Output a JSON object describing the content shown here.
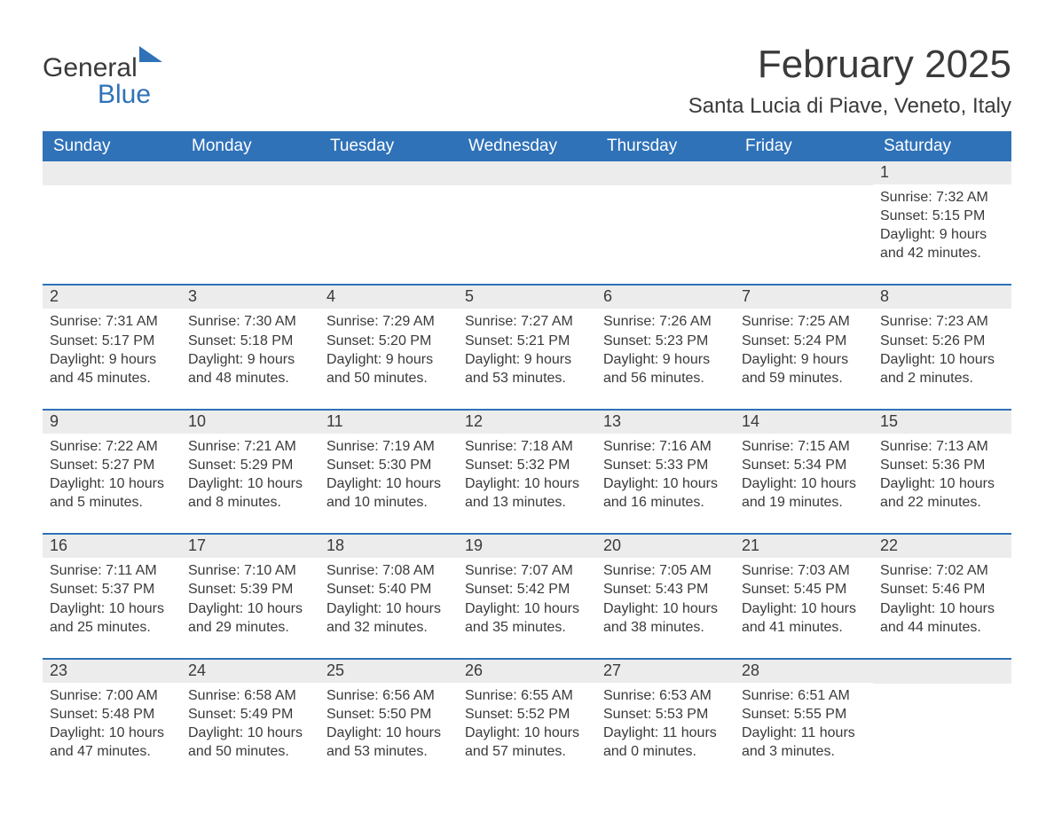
{
  "logo": {
    "text1": "General",
    "text2": "Blue"
  },
  "title": "February 2025",
  "location": "Santa Lucia di Piave, Veneto, Italy",
  "colors": {
    "header_bg": "#2f72b8",
    "header_text": "#ffffff",
    "daynum_bg": "#ececec",
    "text": "#3a3a3a",
    "week_border": "#2f72b8",
    "background": "#ffffff"
  },
  "typography": {
    "title_fontsize": 44,
    "location_fontsize": 24,
    "dow_fontsize": 19,
    "daynum_fontsize": 18,
    "body_fontsize": 16,
    "logo_fontsize": 30
  },
  "days_of_week": [
    "Sunday",
    "Monday",
    "Tuesday",
    "Wednesday",
    "Thursday",
    "Friday",
    "Saturday"
  ],
  "weeks": [
    [
      {
        "n": "",
        "lines": []
      },
      {
        "n": "",
        "lines": []
      },
      {
        "n": "",
        "lines": []
      },
      {
        "n": "",
        "lines": []
      },
      {
        "n": "",
        "lines": []
      },
      {
        "n": "",
        "lines": []
      },
      {
        "n": "1",
        "lines": [
          "Sunrise: 7:32 AM",
          "Sunset: 5:15 PM",
          "Daylight: 9 hours and 42 minutes."
        ]
      }
    ],
    [
      {
        "n": "2",
        "lines": [
          "Sunrise: 7:31 AM",
          "Sunset: 5:17 PM",
          "Daylight: 9 hours and 45 minutes."
        ]
      },
      {
        "n": "3",
        "lines": [
          "Sunrise: 7:30 AM",
          "Sunset: 5:18 PM",
          "Daylight: 9 hours and 48 minutes."
        ]
      },
      {
        "n": "4",
        "lines": [
          "Sunrise: 7:29 AM",
          "Sunset: 5:20 PM",
          "Daylight: 9 hours and 50 minutes."
        ]
      },
      {
        "n": "5",
        "lines": [
          "Sunrise: 7:27 AM",
          "Sunset: 5:21 PM",
          "Daylight: 9 hours and 53 minutes."
        ]
      },
      {
        "n": "6",
        "lines": [
          "Sunrise: 7:26 AM",
          "Sunset: 5:23 PM",
          "Daylight: 9 hours and 56 minutes."
        ]
      },
      {
        "n": "7",
        "lines": [
          "Sunrise: 7:25 AM",
          "Sunset: 5:24 PM",
          "Daylight: 9 hours and 59 minutes."
        ]
      },
      {
        "n": "8",
        "lines": [
          "Sunrise: 7:23 AM",
          "Sunset: 5:26 PM",
          "Daylight: 10 hours and 2 minutes."
        ]
      }
    ],
    [
      {
        "n": "9",
        "lines": [
          "Sunrise: 7:22 AM",
          "Sunset: 5:27 PM",
          "Daylight: 10 hours and 5 minutes."
        ]
      },
      {
        "n": "10",
        "lines": [
          "Sunrise: 7:21 AM",
          "Sunset: 5:29 PM",
          "Daylight: 10 hours and 8 minutes."
        ]
      },
      {
        "n": "11",
        "lines": [
          "Sunrise: 7:19 AM",
          "Sunset: 5:30 PM",
          "Daylight: 10 hours and 10 minutes."
        ]
      },
      {
        "n": "12",
        "lines": [
          "Sunrise: 7:18 AM",
          "Sunset: 5:32 PM",
          "Daylight: 10 hours and 13 minutes."
        ]
      },
      {
        "n": "13",
        "lines": [
          "Sunrise: 7:16 AM",
          "Sunset: 5:33 PM",
          "Daylight: 10 hours and 16 minutes."
        ]
      },
      {
        "n": "14",
        "lines": [
          "Sunrise: 7:15 AM",
          "Sunset: 5:34 PM",
          "Daylight: 10 hours and 19 minutes."
        ]
      },
      {
        "n": "15",
        "lines": [
          "Sunrise: 7:13 AM",
          "Sunset: 5:36 PM",
          "Daylight: 10 hours and 22 minutes."
        ]
      }
    ],
    [
      {
        "n": "16",
        "lines": [
          "Sunrise: 7:11 AM",
          "Sunset: 5:37 PM",
          "Daylight: 10 hours and 25 minutes."
        ]
      },
      {
        "n": "17",
        "lines": [
          "Sunrise: 7:10 AM",
          "Sunset: 5:39 PM",
          "Daylight: 10 hours and 29 minutes."
        ]
      },
      {
        "n": "18",
        "lines": [
          "Sunrise: 7:08 AM",
          "Sunset: 5:40 PM",
          "Daylight: 10 hours and 32 minutes."
        ]
      },
      {
        "n": "19",
        "lines": [
          "Sunrise: 7:07 AM",
          "Sunset: 5:42 PM",
          "Daylight: 10 hours and 35 minutes."
        ]
      },
      {
        "n": "20",
        "lines": [
          "Sunrise: 7:05 AM",
          "Sunset: 5:43 PM",
          "Daylight: 10 hours and 38 minutes."
        ]
      },
      {
        "n": "21",
        "lines": [
          "Sunrise: 7:03 AM",
          "Sunset: 5:45 PM",
          "Daylight: 10 hours and 41 minutes."
        ]
      },
      {
        "n": "22",
        "lines": [
          "Sunrise: 7:02 AM",
          "Sunset: 5:46 PM",
          "Daylight: 10 hours and 44 minutes."
        ]
      }
    ],
    [
      {
        "n": "23",
        "lines": [
          "Sunrise: 7:00 AM",
          "Sunset: 5:48 PM",
          "Daylight: 10 hours and 47 minutes."
        ]
      },
      {
        "n": "24",
        "lines": [
          "Sunrise: 6:58 AM",
          "Sunset: 5:49 PM",
          "Daylight: 10 hours and 50 minutes."
        ]
      },
      {
        "n": "25",
        "lines": [
          "Sunrise: 6:56 AM",
          "Sunset: 5:50 PM",
          "Daylight: 10 hours and 53 minutes."
        ]
      },
      {
        "n": "26",
        "lines": [
          "Sunrise: 6:55 AM",
          "Sunset: 5:52 PM",
          "Daylight: 10 hours and 57 minutes."
        ]
      },
      {
        "n": "27",
        "lines": [
          "Sunrise: 6:53 AM",
          "Sunset: 5:53 PM",
          "Daylight: 11 hours and 0 minutes."
        ]
      },
      {
        "n": "28",
        "lines": [
          "Sunrise: 6:51 AM",
          "Sunset: 5:55 PM",
          "Daylight: 11 hours and 3 minutes."
        ]
      },
      {
        "n": "",
        "lines": []
      }
    ]
  ]
}
